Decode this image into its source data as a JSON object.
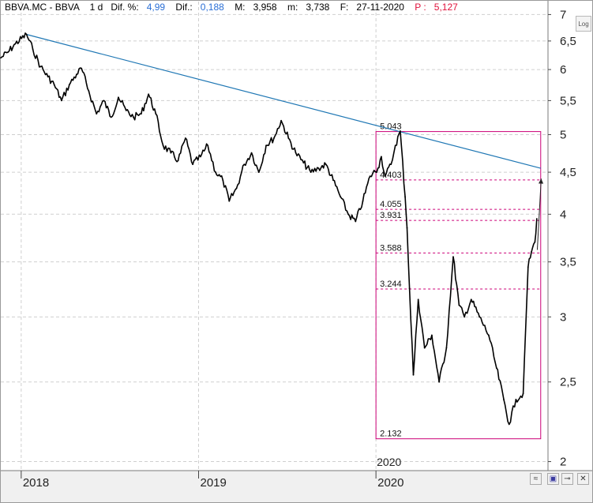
{
  "header": {
    "symbol": "BBVA.MC - BBVA",
    "timeframe": "1 d",
    "dif_pct_label": "Dif. %:",
    "dif_pct_value": "4,99",
    "dif_label": "Dif.:",
    "dif_value": "0,188",
    "max_label": "M:",
    "max_value": "3,958",
    "min_label": "m:",
    "min_value": "3,738",
    "date_label": "F:",
    "date_value": "27-11-2020",
    "price_label": "P :",
    "price_value": "5,127"
  },
  "controls": {
    "log_label": "Log"
  },
  "colors": {
    "price": "#000000",
    "trendline": "#1f77b4",
    "fib": "#cc0077",
    "grid": "#cfcfcf",
    "header_value": "#2a6fd6",
    "header_price": "#e0103a"
  },
  "chart_data": {
    "type": "line",
    "scale": "log",
    "ylim": [
      1.95,
      7.1
    ],
    "xlim": [
      "2017-11-20",
      "2020-12-20"
    ],
    "yticks": [
      "7",
      "6,5",
      "6",
      "5,5",
      "5",
      "4,5",
      "4",
      "3,5",
      "3",
      "2,5",
      "2"
    ],
    "ytick_values": [
      7,
      6.5,
      6,
      5.5,
      5,
      4.5,
      4,
      3.5,
      3,
      2.5,
      2
    ],
    "xticks": [
      {
        "label": "2018",
        "date": "2018-01-01"
      },
      {
        "label": "2019",
        "date": "2019-01-01"
      },
      {
        "label": "2020",
        "date": "2020-01-01"
      }
    ],
    "period_label": {
      "text": "2020",
      "date": "2020-01-01"
    },
    "grid": true,
    "series": [
      {
        "points": [
          [
            "2017-11-20",
            6.2
          ],
          [
            "2017-12-05",
            6.3
          ],
          [
            "2017-12-20",
            6.45
          ],
          [
            "2018-01-12",
            6.62
          ],
          [
            "2018-01-25",
            6.35
          ],
          [
            "2018-02-10",
            6.05
          ],
          [
            "2018-02-25",
            5.88
          ],
          [
            "2018-03-10",
            5.75
          ],
          [
            "2018-03-25",
            5.5
          ],
          [
            "2018-04-10",
            5.75
          ],
          [
            "2018-04-25",
            5.92
          ],
          [
            "2018-05-05",
            6.02
          ],
          [
            "2018-05-20",
            5.65
          ],
          [
            "2018-06-05",
            5.3
          ],
          [
            "2018-06-20",
            5.5
          ],
          [
            "2018-07-05",
            5.25
          ],
          [
            "2018-07-20",
            5.55
          ],
          [
            "2018-08-05",
            5.35
          ],
          [
            "2018-08-20",
            5.25
          ],
          [
            "2018-09-05",
            5.3
          ],
          [
            "2018-09-20",
            5.6
          ],
          [
            "2018-10-05",
            5.3
          ],
          [
            "2018-10-20",
            4.85
          ],
          [
            "2018-11-05",
            4.75
          ],
          [
            "2018-11-20",
            4.65
          ],
          [
            "2018-12-05",
            4.95
          ],
          [
            "2018-12-20",
            4.6
          ],
          [
            "2019-01-05",
            4.7
          ],
          [
            "2019-01-20",
            4.85
          ],
          [
            "2019-02-05",
            4.5
          ],
          [
            "2019-02-20",
            4.4
          ],
          [
            "2019-03-05",
            4.15
          ],
          [
            "2019-03-20",
            4.3
          ],
          [
            "2019-04-05",
            4.6
          ],
          [
            "2019-04-20",
            4.75
          ],
          [
            "2019-05-05",
            4.5
          ],
          [
            "2019-05-20",
            4.85
          ],
          [
            "2019-06-05",
            4.95
          ],
          [
            "2019-06-20",
            5.2
          ],
          [
            "2019-07-05",
            4.95
          ],
          [
            "2019-07-20",
            4.75
          ],
          [
            "2019-08-05",
            4.62
          ],
          [
            "2019-08-20",
            4.5
          ],
          [
            "2019-09-05",
            4.55
          ],
          [
            "2019-09-20",
            4.6
          ],
          [
            "2019-10-05",
            4.4
          ],
          [
            "2019-10-20",
            4.2
          ],
          [
            "2019-11-05",
            4.0
          ],
          [
            "2019-11-20",
            3.92
          ],
          [
            "2019-12-05",
            4.15
          ],
          [
            "2019-12-20",
            4.45
          ],
          [
            "2020-01-05",
            4.55
          ],
          [
            "2020-01-12",
            4.7
          ],
          [
            "2020-01-20",
            4.45
          ],
          [
            "2020-02-01",
            4.6
          ],
          [
            "2020-02-10",
            4.85
          ],
          [
            "2020-02-20",
            5.05
          ],
          [
            "2020-03-01",
            4.2
          ],
          [
            "2020-03-05",
            3.85
          ],
          [
            "2020-03-10",
            3.25
          ],
          [
            "2020-03-18",
            2.55
          ],
          [
            "2020-03-28",
            3.15
          ],
          [
            "2020-04-10",
            2.75
          ],
          [
            "2020-04-25",
            2.85
          ],
          [
            "2020-05-10",
            2.5
          ],
          [
            "2020-05-25",
            2.75
          ],
          [
            "2020-06-08",
            3.55
          ],
          [
            "2020-06-20",
            3.1
          ],
          [
            "2020-07-01",
            3.0
          ],
          [
            "2020-07-15",
            3.15
          ],
          [
            "2020-08-01",
            3.0
          ],
          [
            "2020-08-20",
            2.85
          ],
          [
            "2020-09-05",
            2.6
          ],
          [
            "2020-09-20",
            2.38
          ],
          [
            "2020-10-01",
            2.22
          ],
          [
            "2020-10-15",
            2.38
          ],
          [
            "2020-10-30",
            2.42
          ],
          [
            "2020-11-09",
            3.45
          ],
          [
            "2020-11-16",
            3.6
          ],
          [
            "2020-11-23",
            3.7
          ],
          [
            "2020-11-27",
            3.95
          ]
        ]
      }
    ],
    "trendline": {
      "from": [
        "2018-01-12",
        6.62
      ],
      "to": [
        "2020-12-05",
        4.55
      ]
    },
    "arrow": {
      "from": [
        "2020-11-28",
        3.62
      ],
      "to": [
        "2020-12-06",
        4.42
      ]
    },
    "fib_box": {
      "x_start": "2020-01-01",
      "x_end": "2020-12-05",
      "low": 2.132,
      "high": 5.043
    },
    "fib_levels": [
      {
        "value": 5.043,
        "label": "5.043"
      },
      {
        "value": 4.403,
        "label": "4.403"
      },
      {
        "value": 4.055,
        "label": "4.055"
      },
      {
        "value": 3.931,
        "label": "3.931"
      },
      {
        "value": 3.588,
        "label": "3.588"
      },
      {
        "value": 3.244,
        "label": "3.244"
      },
      {
        "value": 2.132,
        "label": "2.132"
      }
    ]
  }
}
